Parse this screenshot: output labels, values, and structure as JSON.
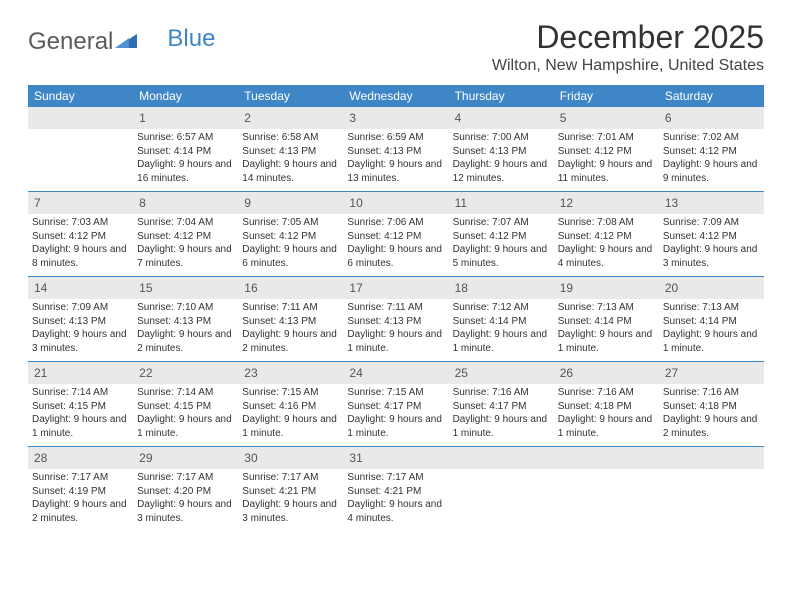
{
  "logo": {
    "text_general": "General",
    "text_blue": "Blue"
  },
  "title": "December 2025",
  "location": "Wilton, New Hampshire, United States",
  "colors": {
    "header_bg": "#3f86c7",
    "day_number_bg": "#e9e9e9",
    "line": "#3f86c7",
    "text": "#333333"
  },
  "day_names": [
    "Sunday",
    "Monday",
    "Tuesday",
    "Wednesday",
    "Thursday",
    "Friday",
    "Saturday"
  ],
  "weeks": [
    [
      {
        "n": "",
        "sr": "",
        "ss": "",
        "dl": ""
      },
      {
        "n": "1",
        "sr": "Sunrise: 6:57 AM",
        "ss": "Sunset: 4:14 PM",
        "dl": "Daylight: 9 hours and 16 minutes."
      },
      {
        "n": "2",
        "sr": "Sunrise: 6:58 AM",
        "ss": "Sunset: 4:13 PM",
        "dl": "Daylight: 9 hours and 14 minutes."
      },
      {
        "n": "3",
        "sr": "Sunrise: 6:59 AM",
        "ss": "Sunset: 4:13 PM",
        "dl": "Daylight: 9 hours and 13 minutes."
      },
      {
        "n": "4",
        "sr": "Sunrise: 7:00 AM",
        "ss": "Sunset: 4:13 PM",
        "dl": "Daylight: 9 hours and 12 minutes."
      },
      {
        "n": "5",
        "sr": "Sunrise: 7:01 AM",
        "ss": "Sunset: 4:12 PM",
        "dl": "Daylight: 9 hours and 11 minutes."
      },
      {
        "n": "6",
        "sr": "Sunrise: 7:02 AM",
        "ss": "Sunset: 4:12 PM",
        "dl": "Daylight: 9 hours and 9 minutes."
      }
    ],
    [
      {
        "n": "7",
        "sr": "Sunrise: 7:03 AM",
        "ss": "Sunset: 4:12 PM",
        "dl": "Daylight: 9 hours and 8 minutes."
      },
      {
        "n": "8",
        "sr": "Sunrise: 7:04 AM",
        "ss": "Sunset: 4:12 PM",
        "dl": "Daylight: 9 hours and 7 minutes."
      },
      {
        "n": "9",
        "sr": "Sunrise: 7:05 AM",
        "ss": "Sunset: 4:12 PM",
        "dl": "Daylight: 9 hours and 6 minutes."
      },
      {
        "n": "10",
        "sr": "Sunrise: 7:06 AM",
        "ss": "Sunset: 4:12 PM",
        "dl": "Daylight: 9 hours and 6 minutes."
      },
      {
        "n": "11",
        "sr": "Sunrise: 7:07 AM",
        "ss": "Sunset: 4:12 PM",
        "dl": "Daylight: 9 hours and 5 minutes."
      },
      {
        "n": "12",
        "sr": "Sunrise: 7:08 AM",
        "ss": "Sunset: 4:12 PM",
        "dl": "Daylight: 9 hours and 4 minutes."
      },
      {
        "n": "13",
        "sr": "Sunrise: 7:09 AM",
        "ss": "Sunset: 4:12 PM",
        "dl": "Daylight: 9 hours and 3 minutes."
      }
    ],
    [
      {
        "n": "14",
        "sr": "Sunrise: 7:09 AM",
        "ss": "Sunset: 4:13 PM",
        "dl": "Daylight: 9 hours and 3 minutes."
      },
      {
        "n": "15",
        "sr": "Sunrise: 7:10 AM",
        "ss": "Sunset: 4:13 PM",
        "dl": "Daylight: 9 hours and 2 minutes."
      },
      {
        "n": "16",
        "sr": "Sunrise: 7:11 AM",
        "ss": "Sunset: 4:13 PM",
        "dl": "Daylight: 9 hours and 2 minutes."
      },
      {
        "n": "17",
        "sr": "Sunrise: 7:11 AM",
        "ss": "Sunset: 4:13 PM",
        "dl": "Daylight: 9 hours and 1 minute."
      },
      {
        "n": "18",
        "sr": "Sunrise: 7:12 AM",
        "ss": "Sunset: 4:14 PM",
        "dl": "Daylight: 9 hours and 1 minute."
      },
      {
        "n": "19",
        "sr": "Sunrise: 7:13 AM",
        "ss": "Sunset: 4:14 PM",
        "dl": "Daylight: 9 hours and 1 minute."
      },
      {
        "n": "20",
        "sr": "Sunrise: 7:13 AM",
        "ss": "Sunset: 4:14 PM",
        "dl": "Daylight: 9 hours and 1 minute."
      }
    ],
    [
      {
        "n": "21",
        "sr": "Sunrise: 7:14 AM",
        "ss": "Sunset: 4:15 PM",
        "dl": "Daylight: 9 hours and 1 minute."
      },
      {
        "n": "22",
        "sr": "Sunrise: 7:14 AM",
        "ss": "Sunset: 4:15 PM",
        "dl": "Daylight: 9 hours and 1 minute."
      },
      {
        "n": "23",
        "sr": "Sunrise: 7:15 AM",
        "ss": "Sunset: 4:16 PM",
        "dl": "Daylight: 9 hours and 1 minute."
      },
      {
        "n": "24",
        "sr": "Sunrise: 7:15 AM",
        "ss": "Sunset: 4:17 PM",
        "dl": "Daylight: 9 hours and 1 minute."
      },
      {
        "n": "25",
        "sr": "Sunrise: 7:16 AM",
        "ss": "Sunset: 4:17 PM",
        "dl": "Daylight: 9 hours and 1 minute."
      },
      {
        "n": "26",
        "sr": "Sunrise: 7:16 AM",
        "ss": "Sunset: 4:18 PM",
        "dl": "Daylight: 9 hours and 1 minute."
      },
      {
        "n": "27",
        "sr": "Sunrise: 7:16 AM",
        "ss": "Sunset: 4:18 PM",
        "dl": "Daylight: 9 hours and 2 minutes."
      }
    ],
    [
      {
        "n": "28",
        "sr": "Sunrise: 7:17 AM",
        "ss": "Sunset: 4:19 PM",
        "dl": "Daylight: 9 hours and 2 minutes."
      },
      {
        "n": "29",
        "sr": "Sunrise: 7:17 AM",
        "ss": "Sunset: 4:20 PM",
        "dl": "Daylight: 9 hours and 3 minutes."
      },
      {
        "n": "30",
        "sr": "Sunrise: 7:17 AM",
        "ss": "Sunset: 4:21 PM",
        "dl": "Daylight: 9 hours and 3 minutes."
      },
      {
        "n": "31",
        "sr": "Sunrise: 7:17 AM",
        "ss": "Sunset: 4:21 PM",
        "dl": "Daylight: 9 hours and 4 minutes."
      },
      {
        "n": "",
        "sr": "",
        "ss": "",
        "dl": ""
      },
      {
        "n": "",
        "sr": "",
        "ss": "",
        "dl": ""
      },
      {
        "n": "",
        "sr": "",
        "ss": "",
        "dl": ""
      }
    ]
  ]
}
